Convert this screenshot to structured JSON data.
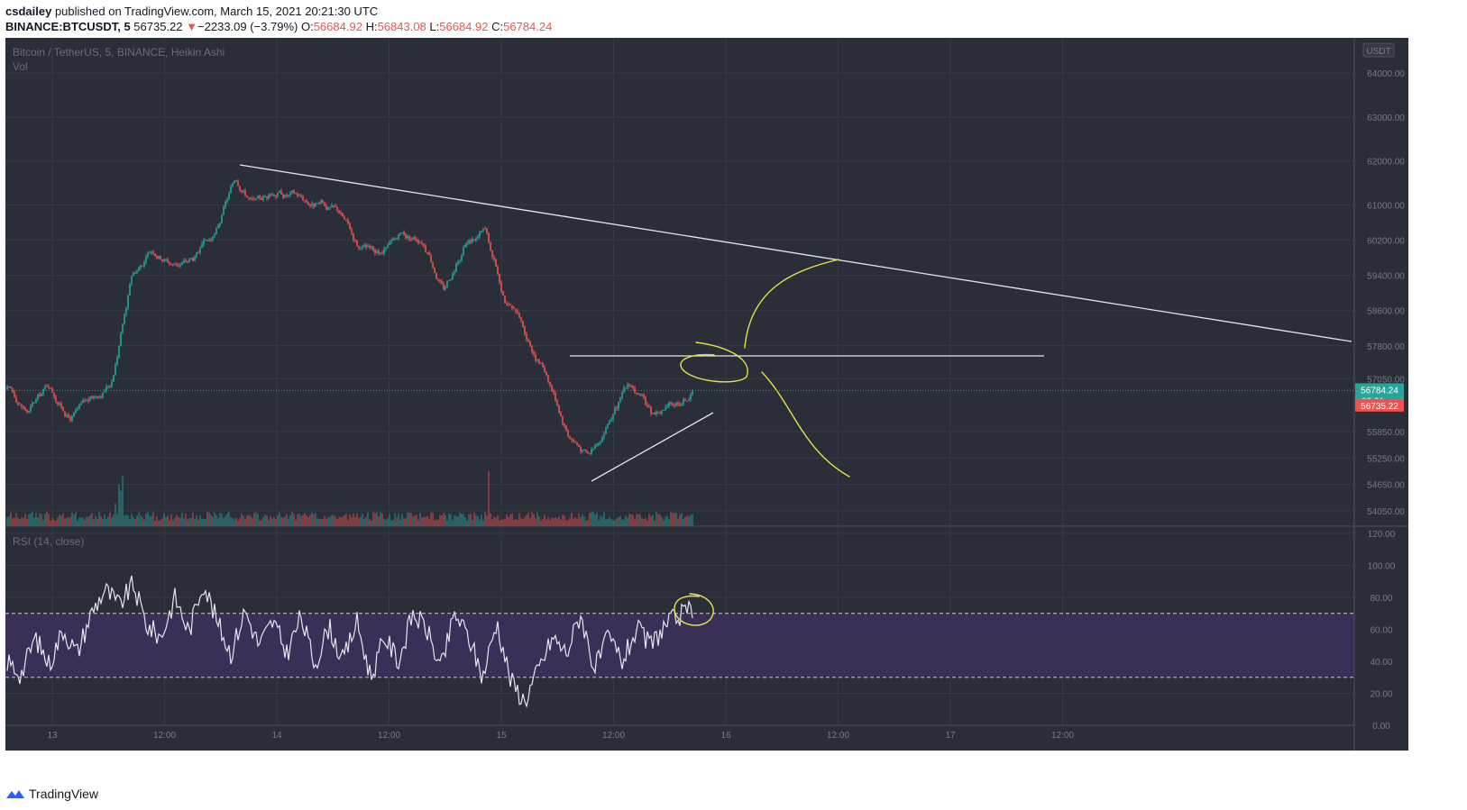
{
  "header": {
    "author": "csdailey",
    "published_text": "published on TradingView.com, March 15, 2021 20:21:30 UTC",
    "symbol": "BINANCE:BTCUSDT, 5",
    "last_price": "56735.22",
    "change_arrow": "▼",
    "change": "−2233.09 (−3.79%)",
    "o_label": "O:",
    "o_value": "56684.92",
    "h_label": "H:",
    "h_value": "56843.08",
    "l_label": "L:",
    "l_value": "56684.92",
    "c_label": "C:",
    "c_value": "56784.24"
  },
  "footer": {
    "brand": "TradingView"
  },
  "colors": {
    "background": "#2a2e39",
    "up": "#26a69a",
    "down": "#ef5350",
    "rsi_band": "#3b2f57",
    "annotation": "#e8e34a",
    "trendline": "#e6e6e6"
  },
  "chart_data": [
    {
      "type": "candlestick",
      "title": "Bitcoin / TetherUS, 5, BINANCE, Heikin Ashi",
      "volume_label": "Vol",
      "currency_badge": "USDT",
      "x_ticks": [
        "13",
        "12:00",
        "14",
        "12:00",
        "15",
        "12:00",
        "16",
        "12:00",
        "17",
        "12:00"
      ],
      "y_ticks": [
        "64000.00",
        "63000.00",
        "62000.00",
        "61000.00",
        "60200.00",
        "59400.00",
        "58600.00",
        "57800.00",
        "57050.00",
        "55850.00",
        "55250.00",
        "54650.00",
        "54050.00"
      ],
      "ylim": [
        53700,
        64800
      ],
      "price_path": [
        [
          "13",
          56800
        ],
        [
          "13",
          56300
        ],
        [
          "13",
          56900
        ],
        [
          "13",
          56200
        ],
        [
          "12:00",
          56500
        ],
        [
          "12:00",
          57000
        ],
        [
          "12:00",
          59400
        ],
        [
          "12:00",
          60000
        ],
        [
          "12:00",
          59700
        ],
        [
          "12:00",
          59800
        ],
        [
          "12:00",
          60200
        ],
        [
          "14",
          61600
        ],
        [
          "14",
          61000
        ],
        [
          "14",
          61300
        ],
        [
          "14",
          61200
        ],
        [
          "12:00",
          61000
        ],
        [
          "12:00",
          60800
        ],
        [
          "12:00",
          60000
        ],
        [
          "12:00",
          59800
        ],
        [
          "12:00",
          60200
        ],
        [
          "15",
          60300
        ],
        [
          "15",
          59100
        ],
        [
          "15",
          60100
        ],
        [
          "15",
          60400
        ],
        [
          "12:00",
          58900
        ],
        [
          "12:00",
          58000
        ],
        [
          "12:00",
          57200
        ],
        [
          "12:00",
          55900
        ],
        [
          "12:00",
          55300
        ],
        [
          "12:00",
          56200
        ],
        [
          "12:00",
          56900
        ],
        [
          "12:00",
          56200
        ],
        [
          "12:00",
          56400
        ],
        [
          "12:00",
          56784.24
        ]
      ],
      "last_value_label": "56784.24",
      "countdown_label": "03:31",
      "prev_value_label": "56735.22",
      "trendlines": [
        {
          "name": "descending resistance",
          "from": [
            "~13 18:00",
            61700
          ],
          "to": [
            "17 12:00+",
            57700
          ]
        },
        {
          "name": "horizontal level",
          "from": [
            "15 ~09:00",
            57300
          ],
          "to": [
            "17 12:00",
            57300
          ]
        },
        {
          "name": "ascending support",
          "from": [
            "15 ~09:00",
            54400
          ],
          "to": [
            "15 ~20:00",
            55950
          ]
        }
      ]
    },
    {
      "type": "line",
      "title": "RSI (14, close)",
      "y_ticks": [
        "120.00",
        "100.00",
        "80.00",
        "60.00",
        "40.00",
        "20.00",
        "0.00"
      ],
      "ylim": [
        0,
        120
      ],
      "band": [
        30,
        70
      ],
      "approx_values": [
        40,
        32,
        55,
        38,
        60,
        45,
        70,
        85,
        75,
        88,
        62,
        55,
        80,
        58,
        90,
        65,
        45,
        72,
        50,
        65,
        45,
        68,
        38,
        62,
        40,
        65,
        30,
        55,
        40,
        70,
        60,
        35,
        70,
        55,
        30,
        65,
        28,
        15,
        35,
        55,
        45,
        70,
        35,
        55,
        40,
        60,
        50,
        62,
        68,
        72
      ]
    }
  ]
}
